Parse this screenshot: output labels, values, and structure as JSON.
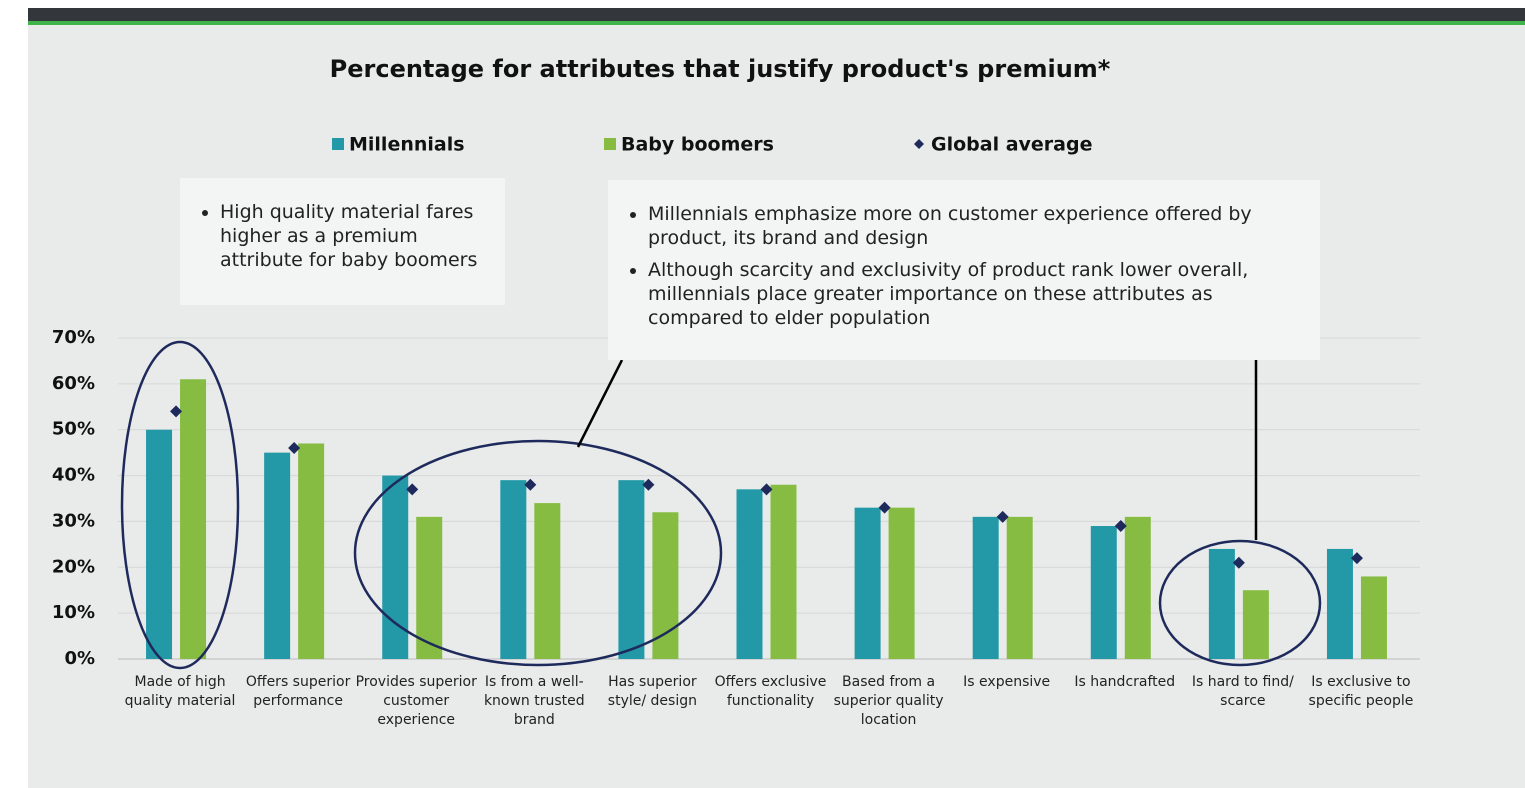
{
  "chart_data": {
    "type": "bar",
    "title": "Percentage for attributes that justify product's premium*",
    "categories": [
      "Made of high quality material",
      "Offers superior performance",
      "Provides superior customer experience",
      "Is from a well-known trusted brand",
      "Has superior style/ design",
      "Offers exclusive functionality",
      "Based from a superior quality location",
      "Is expensive",
      "Is handcrafted",
      "Is hard to find/ scarce",
      "Is exclusive to specific people"
    ],
    "series": [
      {
        "name": "Millennials",
        "color": "#2399a8",
        "values": [
          50,
          45,
          40,
          39,
          39,
          37,
          33,
          31,
          29,
          24,
          24
        ]
      },
      {
        "name": "Baby boomers",
        "color": "#86bc42",
        "values": [
          61,
          47,
          31,
          34,
          32,
          38,
          33,
          31,
          31,
          15,
          18
        ]
      },
      {
        "name": "Global average",
        "color": "#1f2a5c",
        "marker": "diamond",
        "values": [
          54,
          46,
          37,
          38,
          38,
          37,
          33,
          31,
          29,
          21,
          22
        ]
      }
    ],
    "ylim": [
      0,
      70
    ],
    "yticks": [
      {
        "value": 0,
        "label": "0%"
      },
      {
        "value": 10,
        "label": "10%"
      },
      {
        "value": 20,
        "label": "20%"
      },
      {
        "value": 30,
        "label": "30%"
      },
      {
        "value": 40,
        "label": "40%"
      },
      {
        "value": 50,
        "label": "50%"
      },
      {
        "value": 60,
        "label": "60%"
      },
      {
        "value": 70,
        "label": "70%"
      }
    ],
    "grid": true,
    "annotations": [
      [
        "High quality material fares higher as a premium attribute for baby boomers"
      ],
      [
        "Millennials emphasize more on customer experience offered by product, its brand and design",
        "Although scarcity and exclusivity of product rank lower overall, millennials place greater importance on these attributes as compared to elder population"
      ]
    ]
  }
}
